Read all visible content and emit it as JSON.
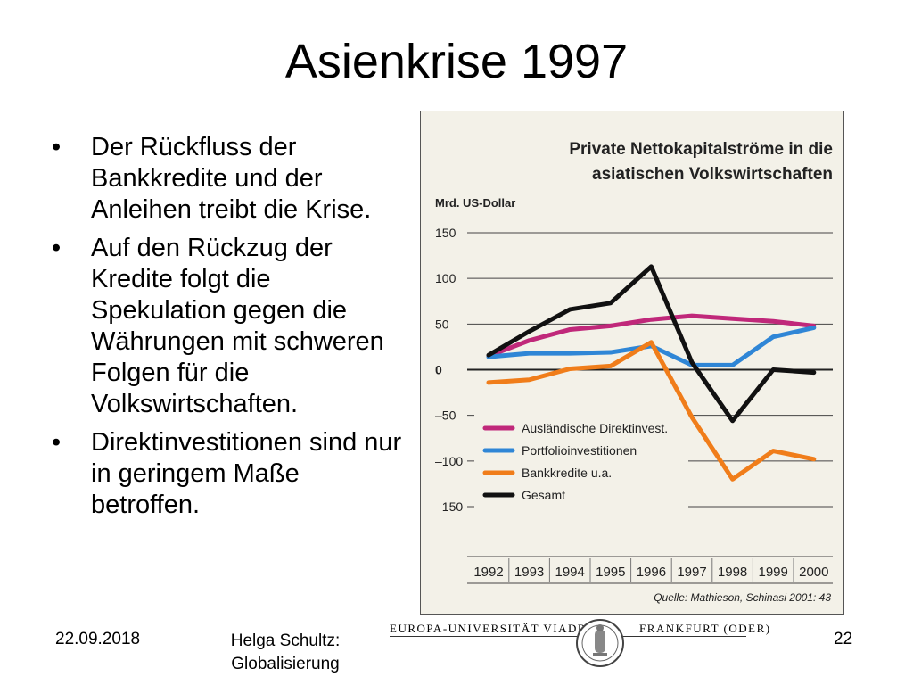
{
  "slide": {
    "title": "Asienkrise 1997",
    "bullets": [
      "Der Rückfluss der Bankkredite und der Anleihen treibt die Krise.",
      "Auf den Rückzug der Kredite folgt die Spekulation gegen die Währungen mit schweren Folgen für die Volkswirtschaften.",
      "Direktinvestitionen sind nur in geringem Maße betroffen."
    ],
    "bullet_symbol": "•"
  },
  "footer": {
    "date": "22.09.2018",
    "author_line1": "Helga Schultz:",
    "author_line2": "Globalisierung",
    "page": "22",
    "university_left": "EUROPA-UNIVERSITÄT VIADRINA",
    "university_right": "FRANKFURT (ODER)"
  },
  "chart_data": {
    "type": "line",
    "title_line1": "Private Nettokapitalströme in die",
    "title_line2": "asiatischen Volkswirtschaften",
    "ylabel": "Mrd. US-Dollar",
    "source": "Quelle: Mathieson, Schinasi 2001: 43",
    "categories": [
      "1992",
      "1993",
      "1994",
      "1995",
      "1996",
      "1997",
      "1998",
      "1999",
      "2000"
    ],
    "yticks": [
      150,
      100,
      50,
      0,
      -50,
      -100,
      -150
    ],
    "ytick_labels": [
      "150",
      "100",
      "50",
      "0",
      "–50",
      "–100",
      "–150"
    ],
    "ylim": [
      -150,
      150
    ],
    "legend_placement": "lower-left",
    "grid": true,
    "series": [
      {
        "name": "Ausländische Direktinvest.",
        "color": "#c0287a",
        "values": [
          15,
          32,
          44,
          48,
          55,
          59,
          56,
          53,
          48
        ]
      },
      {
        "name": "Portfolioinvestitionen",
        "color": "#2f86d6",
        "values": [
          14,
          18,
          18,
          19,
          26,
          5,
          5,
          36,
          46
        ]
      },
      {
        "name": "Bankkredite u.a.",
        "color": "#f07d1a",
        "values": [
          -14,
          -11,
          1,
          4,
          30,
          -52,
          -120,
          -89,
          -98
        ]
      },
      {
        "name": "Gesamt",
        "color": "#111111",
        "values": [
          16,
          42,
          66,
          73,
          113,
          8,
          -56,
          0,
          -3
        ]
      }
    ]
  }
}
